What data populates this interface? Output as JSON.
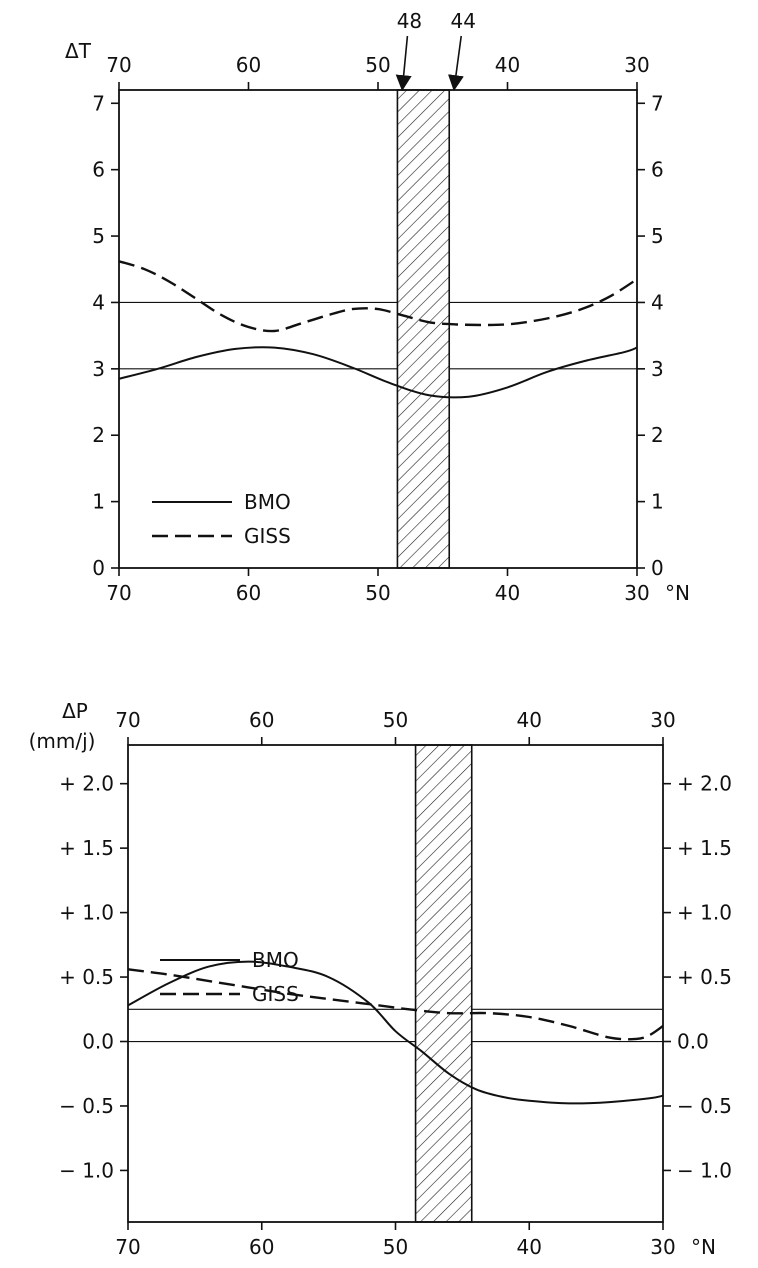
{
  "chart_data": [
    {
      "type": "line",
      "y_title": "ΔT",
      "x_unit": "°N",
      "xlim": [
        70,
        30
      ],
      "ylim": [
        0,
        7.2
      ],
      "x_ticks": [
        70,
        60,
        50,
        40,
        30
      ],
      "x_tick_labels": [
        "70",
        "60",
        "50",
        "40",
        "30"
      ],
      "top_x_tick_labels": [
        "70",
        "60",
        "50",
        "40",
        "30"
      ],
      "y_ticks": [
        0,
        1,
        2,
        3,
        4,
        5,
        6,
        7
      ],
      "y_tick_labels": [
        "0",
        "1",
        "2",
        "3",
        "4",
        "5",
        "6",
        "7"
      ],
      "band": {
        "from": 48.5,
        "to": 44.5,
        "arrow_labels": [
          "48",
          "44"
        ]
      },
      "reference_lines": [
        {
          "series": "GISS",
          "value": 4.0
        },
        {
          "series": "BMO",
          "value": 3.0
        }
      ],
      "legend": {
        "position": "bottom-left"
      },
      "series": [
        {
          "name": "BMO",
          "style": "solid",
          "x": [
            70,
            67,
            64,
            61,
            58,
            55,
            52,
            49,
            46,
            43,
            40,
            37,
            34,
            31,
            30
          ],
          "values": [
            2.85,
            3.0,
            3.18,
            3.3,
            3.32,
            3.22,
            3.02,
            2.78,
            2.6,
            2.58,
            2.72,
            2.95,
            3.12,
            3.25,
            3.32
          ]
        },
        {
          "name": "GISS",
          "style": "dashed",
          "x": [
            70,
            68,
            66,
            64,
            62,
            60,
            58,
            56,
            54,
            52,
            50,
            48,
            46,
            44,
            42,
            40,
            38,
            36,
            34,
            32,
            30
          ],
          "values": [
            4.62,
            4.5,
            4.3,
            4.05,
            3.8,
            3.63,
            3.57,
            3.68,
            3.8,
            3.9,
            3.9,
            3.8,
            3.7,
            3.67,
            3.66,
            3.67,
            3.72,
            3.8,
            3.92,
            4.1,
            4.35
          ]
        }
      ]
    },
    {
      "type": "line",
      "y_title": "ΔP",
      "y_unit": "(mm/j)",
      "x_unit": "°N",
      "xlim": [
        70,
        30
      ],
      "ylim": [
        -1.4,
        2.3
      ],
      "x_ticks": [
        70,
        60,
        50,
        40,
        30
      ],
      "x_tick_labels": [
        "70",
        "60",
        "50",
        "40",
        "30"
      ],
      "top_x_tick_labels": [
        "70",
        "60",
        "50",
        "40",
        "30"
      ],
      "y_ticks": [
        2.0,
        1.5,
        1.0,
        0.5,
        0.0,
        -0.5,
        -1.0
      ],
      "y_tick_labels": [
        "+ 2.0",
        "+ 1.5",
        "+ 1.0",
        "+ 0.5",
        "0.0",
        "− 0.5",
        "− 1.0"
      ],
      "band": {
        "from": 48.5,
        "to": 44.3
      },
      "reference_lines": [
        {
          "series": "BMO",
          "value": 0.0
        },
        {
          "series": "GISS",
          "value": 0.25
        }
      ],
      "legend": {
        "position": "bottom-left"
      },
      "series": [
        {
          "name": "BMO",
          "style": "solid",
          "x": [
            70,
            67,
            64,
            61,
            58,
            55,
            52,
            50,
            48,
            46,
            44,
            42,
            40,
            37,
            34,
            31,
            30
          ],
          "values": [
            0.28,
            0.45,
            0.58,
            0.62,
            0.58,
            0.5,
            0.3,
            0.08,
            -0.08,
            -0.25,
            -0.37,
            -0.43,
            -0.46,
            -0.48,
            -0.47,
            -0.44,
            -0.42
          ]
        },
        {
          "name": "GISS",
          "style": "dashed",
          "x": [
            70,
            67,
            64,
            61,
            58,
            55,
            52,
            49,
            46,
            43,
            40,
            37,
            34,
            32,
            31,
            30
          ],
          "values": [
            0.56,
            0.52,
            0.47,
            0.42,
            0.37,
            0.33,
            0.29,
            0.25,
            0.22,
            0.22,
            0.19,
            0.12,
            0.03,
            0.02,
            0.05,
            0.12
          ]
        }
      ]
    }
  ]
}
